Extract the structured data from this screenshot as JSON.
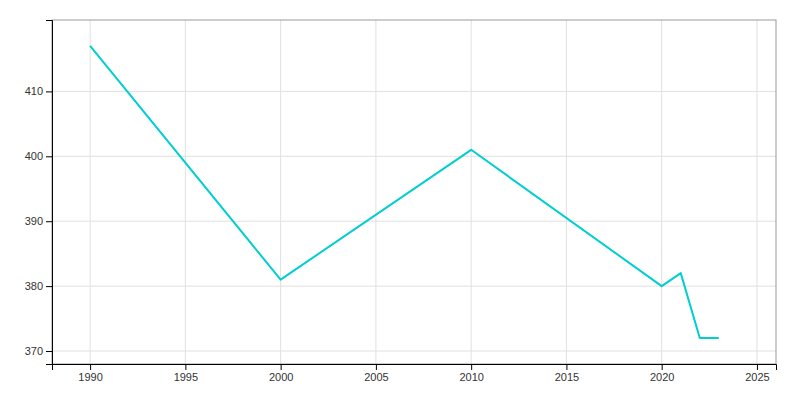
{
  "chart_data": {
    "type": "line",
    "x": [
      1990,
      2000,
      2010,
      2020,
      2021,
      2022,
      2023
    ],
    "values": [
      417,
      381,
      401,
      380,
      382,
      372,
      372
    ],
    "color": "#00CED1",
    "xlim": [
      1988,
      2026
    ],
    "ylim": [
      368,
      421
    ],
    "xticks": [
      1990,
      1995,
      2000,
      2005,
      2010,
      2015,
      2020,
      2025
    ],
    "yticks": [
      370,
      380,
      390,
      400,
      410
    ],
    "grid": true
  }
}
